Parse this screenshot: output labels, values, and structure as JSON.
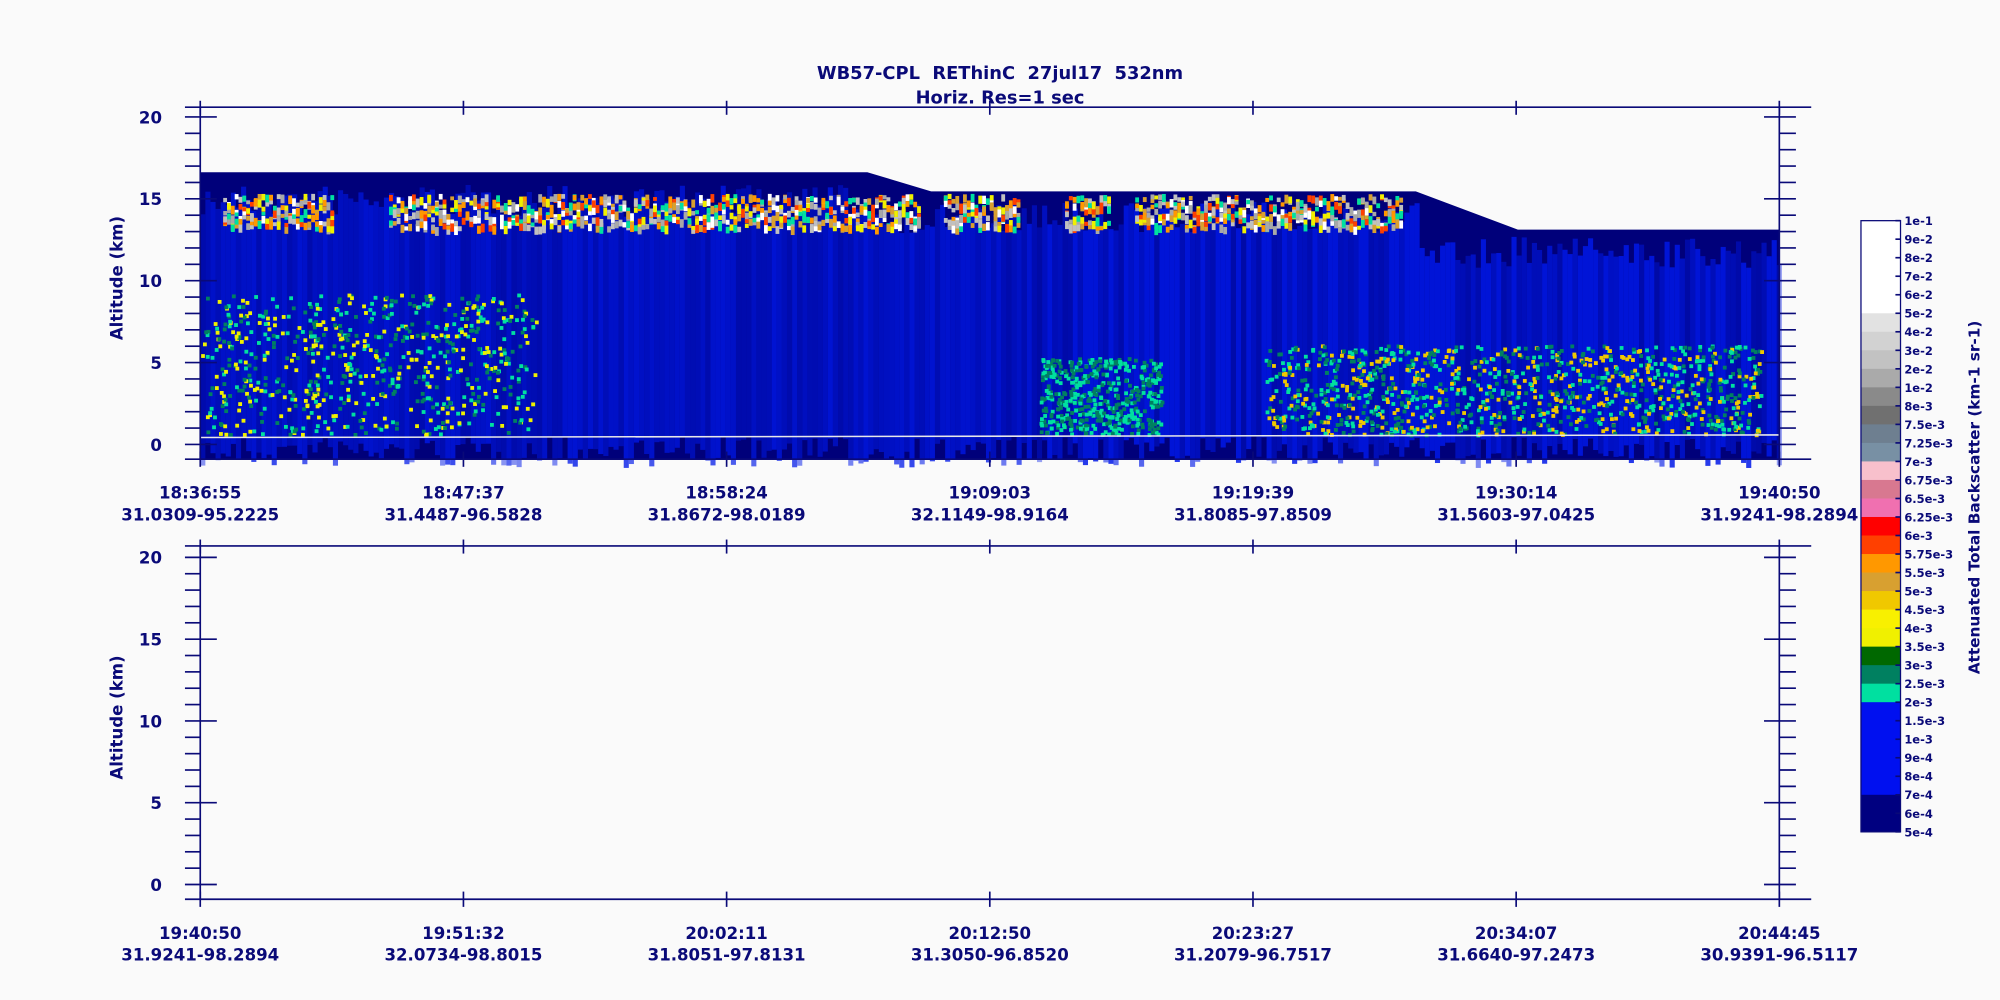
{
  "title": "WB57-CPL  REThinC  27jul17  532nm",
  "subtitle": "Horiz. Res=1 sec",
  "chart_data": [
    {
      "type": "curtain",
      "ylabel": "Altitude (km)",
      "ylim": [
        -0.9,
        20.6
      ],
      "yticks": [
        0,
        5,
        10,
        15,
        20
      ],
      "minor_yticks": [
        1,
        2,
        3,
        4,
        6,
        7,
        8,
        9,
        11,
        12,
        13,
        14,
        16,
        17,
        18,
        19
      ],
      "xtick_times": [
        "18:36:55",
        "18:47:37",
        "18:58:24",
        "19:09:03",
        "19:19:39",
        "19:30:14",
        "19:40:50"
      ],
      "xtick_locations": [
        "31.0309-95.2225",
        "31.4487-96.5828",
        "31.8672-98.0189",
        "32.1149-98.9164",
        "31.8085-97.8509",
        "31.5603-97.0425",
        "31.9241-98.2894"
      ]
    },
    {
      "type": "empty",
      "ylabel": "Altitude (km)",
      "ylim": [
        -0.9,
        20.7
      ],
      "yticks": [
        0,
        5,
        10,
        15,
        20
      ],
      "minor_yticks": [
        1,
        2,
        3,
        4,
        6,
        7,
        8,
        9,
        11,
        12,
        13,
        14,
        16,
        17,
        18,
        19
      ],
      "xtick_times": [
        "19:40:50",
        "19:51:32",
        "20:02:11",
        "20:12:50",
        "20:23:27",
        "20:34:07",
        "20:44:45"
      ],
      "xtick_locations": [
        "31.9241-98.2894",
        "32.0734-98.8015",
        "31.8051-97.8131",
        "31.3050-96.8520",
        "31.2079-96.7517",
        "31.6640-97.2473",
        "30.9391-96.5117"
      ]
    }
  ],
  "colorbar": {
    "label": "Attenuated Total Backscatter (km-1 sr-1)",
    "levels": [
      "1e-1",
      "9e-2",
      "8e-2",
      "7e-2",
      "6e-2",
      "5e-2",
      "4e-2",
      "3e-2",
      "2e-2",
      "1e-2",
      "8e-3",
      "7.5e-3",
      "7.25e-3",
      "7e-3",
      "6.75e-3",
      "6.5e-3",
      "6.25e-3",
      "6e-3",
      "5.75e-3",
      "5.5e-3",
      "5e-3",
      "4.5e-3",
      "4e-3",
      "3.5e-3",
      "3e-3",
      "2.5e-3",
      "2e-3",
      "1.5e-3",
      "1e-3",
      "9e-4",
      "8e-4",
      "7e-4",
      "6e-4",
      "5e-4"
    ],
    "colors": [
      "#ffffff",
      "#ffffff",
      "#ffffff",
      "#ffffff",
      "#ffffff",
      "#e2e2e2",
      "#d2d2d2",
      "#c2c2c2",
      "#aaaaaa",
      "#8a8a8a",
      "#707070",
      "#6e7f90",
      "#7890a4",
      "#f8c0cc",
      "#d87890",
      "#f070b0",
      "#ff0000",
      "#ff4000",
      "#ff9800",
      "#d8a030",
      "#f0c800",
      "#f8f000",
      "#f0f000",
      "#006800",
      "#008060",
      "#00e0a0",
      "#0010f0",
      "#0010f0",
      "#0010f0",
      "#0010f0",
      "#0010f0",
      "#000080",
      "#000080"
    ]
  }
}
